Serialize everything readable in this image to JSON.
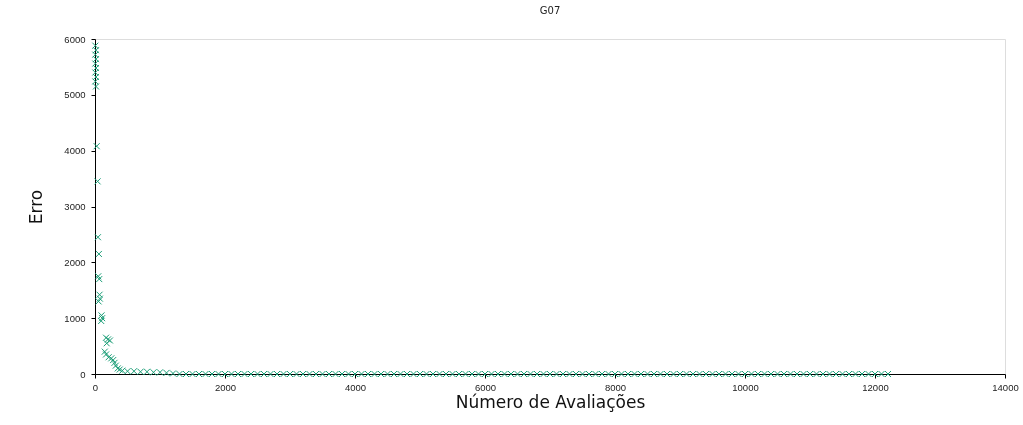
{
  "chart_data": {
    "type": "scatter",
    "title": "G07",
    "xlabel": "Número de Avaliações",
    "ylabel": "Erro",
    "xlim": [
      0,
      14000
    ],
    "xticks": [
      0,
      2000,
      4000,
      6000,
      8000,
      10000,
      12000,
      14000
    ],
    "ylim": [
      0,
      6000
    ],
    "yticks": [
      0,
      1000,
      2000,
      3000,
      4000,
      5000,
      6000
    ],
    "grid": false,
    "marker": "cross",
    "series": [
      {
        "color": "#1b9e77",
        "x": [
          5,
          15,
          5,
          15,
          5,
          15,
          5,
          15,
          5,
          15,
          26,
          40,
          45,
          60,
          50,
          65,
          70,
          75,
          55,
          100,
          110,
          95,
          170,
          200,
          230,
          180,
          150,
          170,
          210,
          250,
          280,
          300,
          320,
          350,
          380,
          420,
          500,
          600,
          700,
          800,
          900,
          1000,
          1100,
          1200,
          1300,
          1400,
          1500,
          1600,
          1700,
          1800,
          1900,
          2000,
          2100,
          2200,
          2300,
          2400,
          2500,
          2600,
          2700,
          2800,
          2900,
          3000,
          3100,
          3200,
          3300,
          3400,
          3500,
          3600,
          3700,
          3800,
          3900,
          4000,
          4100,
          4200,
          4300,
          4400,
          4500,
          4600,
          4700,
          4800,
          4900,
          5000,
          5100,
          5200,
          5300,
          5400,
          5500,
          5600,
          5700,
          5800,
          5900,
          6000,
          6100,
          6200,
          6300,
          6400,
          6500,
          6600,
          6700,
          6800,
          6900,
          7000,
          7100,
          7200,
          7300,
          7400,
          7500,
          7600,
          7700,
          7800,
          7900,
          8000,
          8100,
          8200,
          8300,
          8400,
          8500,
          8600,
          8700,
          8800,
          8900,
          9000,
          9100,
          9200,
          9300,
          9400,
          9500,
          9600,
          9700,
          9800,
          9900,
          10000,
          10100,
          10200,
          10300,
          10400,
          10500,
          10600,
          10700,
          10800,
          10900,
          11000,
          11100,
          11200,
          11300,
          11400,
          11500,
          11600,
          11700,
          11800,
          11900,
          12000,
          12100,
          12200
        ],
        "values": [
          5880,
          5800,
          5720,
          5640,
          5560,
          5480,
          5400,
          5320,
          5240,
          5150,
          4080,
          3450,
          2450,
          2150,
          1750,
          1700,
          1420,
          1350,
          1300,
          1050,
          1000,
          950,
          650,
          620,
          600,
          550,
          400,
          350,
          300,
          280,
          250,
          200,
          150,
          100,
          80,
          60,
          50,
          50,
          40,
          40,
          30,
          30,
          20,
          10,
          0,
          0,
          0,
          0,
          0,
          0,
          0,
          0,
          0,
          0,
          0,
          0,
          0,
          0,
          0,
          0,
          0,
          0,
          0,
          0,
          0,
          0,
          0,
          0,
          0,
          0,
          0,
          0,
          0,
          0,
          0,
          0,
          0,
          0,
          0,
          0,
          0,
          0,
          0,
          0,
          0,
          0,
          0,
          0,
          0,
          0,
          0,
          0,
          0,
          0,
          0,
          0,
          0,
          0,
          0,
          0,
          0,
          0,
          0,
          0,
          0,
          0,
          0,
          0,
          0,
          0,
          0,
          0,
          0,
          0,
          0,
          0,
          0,
          0,
          0,
          0,
          0,
          0,
          0,
          0,
          0,
          0,
          0,
          0,
          0,
          0,
          0,
          0,
          0,
          0,
          0,
          0,
          0,
          0,
          0,
          0,
          0,
          0,
          0,
          0,
          0,
          0,
          0,
          0,
          0,
          0,
          0,
          0,
          0,
          0
        ]
      }
    ]
  }
}
